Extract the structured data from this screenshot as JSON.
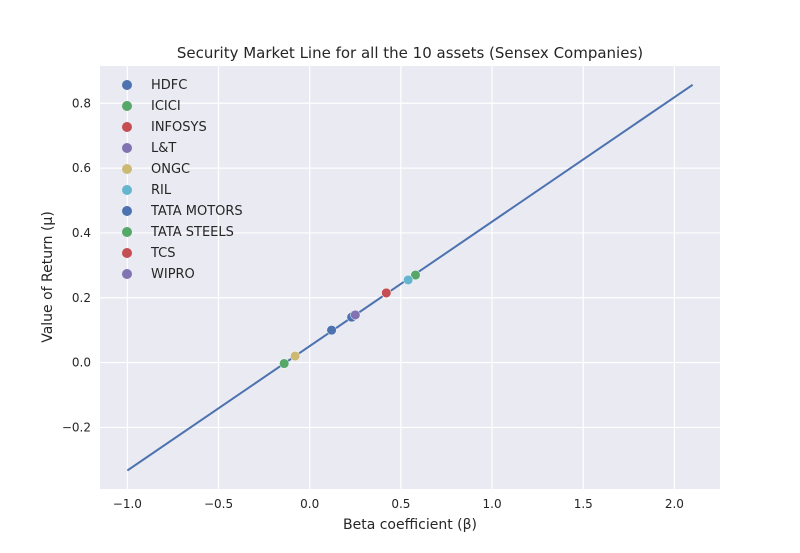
{
  "chart_data": {
    "type": "scatter",
    "title": "Security Market Line for all the 10 assets (Sensex Companies)",
    "xlabel": "Beta coefficient (β)",
    "ylabel": "Value of Return (μ)",
    "xlim": [
      -1.15,
      2.25
    ],
    "ylim": [
      -0.39,
      0.915
    ],
    "xticks": [
      -1.0,
      -0.5,
      0.0,
      0.5,
      1.0,
      1.5,
      2.0
    ],
    "xtick_labels": [
      "−1.0",
      "−0.5",
      "0.0",
      "0.5",
      "1.0",
      "1.5",
      "2.0"
    ],
    "yticks": [
      -0.2,
      0.0,
      0.2,
      0.4,
      0.6,
      0.8
    ],
    "ytick_labels": [
      "−0.2",
      "0.0",
      "0.2",
      "0.4",
      "0.6",
      "0.8"
    ],
    "grid": true,
    "legend_position": "top-left",
    "background": "#eaeaf2",
    "sml_line": {
      "color": "#4c72b0",
      "x": [
        -1.0,
        2.1
      ],
      "y": [
        -0.333,
        0.857
      ]
    },
    "series": [
      {
        "name": "HDFC",
        "color": "#4c72b0",
        "x": [
          0.12
        ],
        "y": [
          0.1
        ]
      },
      {
        "name": "ICICI",
        "color": "#55a868",
        "x": [
          0.58
        ],
        "y": [
          0.27
        ]
      },
      {
        "name": "INFOSYS",
        "color": "#c44e52",
        "x": [
          0.42
        ],
        "y": [
          0.215
        ]
      },
      {
        "name": "L&T",
        "color": "#8172b2",
        "x": [
          0.24
        ],
        "y": [
          0.145
        ]
      },
      {
        "name": "ONGC",
        "color": "#ccb974",
        "x": [
          -0.08
        ],
        "y": [
          0.02
        ]
      },
      {
        "name": "RIL",
        "color": "#64b5cd",
        "x": [
          0.54
        ],
        "y": [
          0.255
        ]
      },
      {
        "name": "TATA MOTORS",
        "color": "#4c72b0",
        "x": [
          0.23
        ],
        "y": [
          0.14
        ]
      },
      {
        "name": "TATA STEELS",
        "color": "#55a868",
        "x": [
          -0.14
        ],
        "y": [
          -0.003
        ]
      },
      {
        "name": "TCS",
        "color": "#c44e52",
        "x": [
          0.42
        ],
        "y": [
          0.215
        ]
      },
      {
        "name": "WIPRO",
        "color": "#8172b2",
        "x": [
          0.25
        ],
        "y": [
          0.147
        ]
      }
    ]
  }
}
